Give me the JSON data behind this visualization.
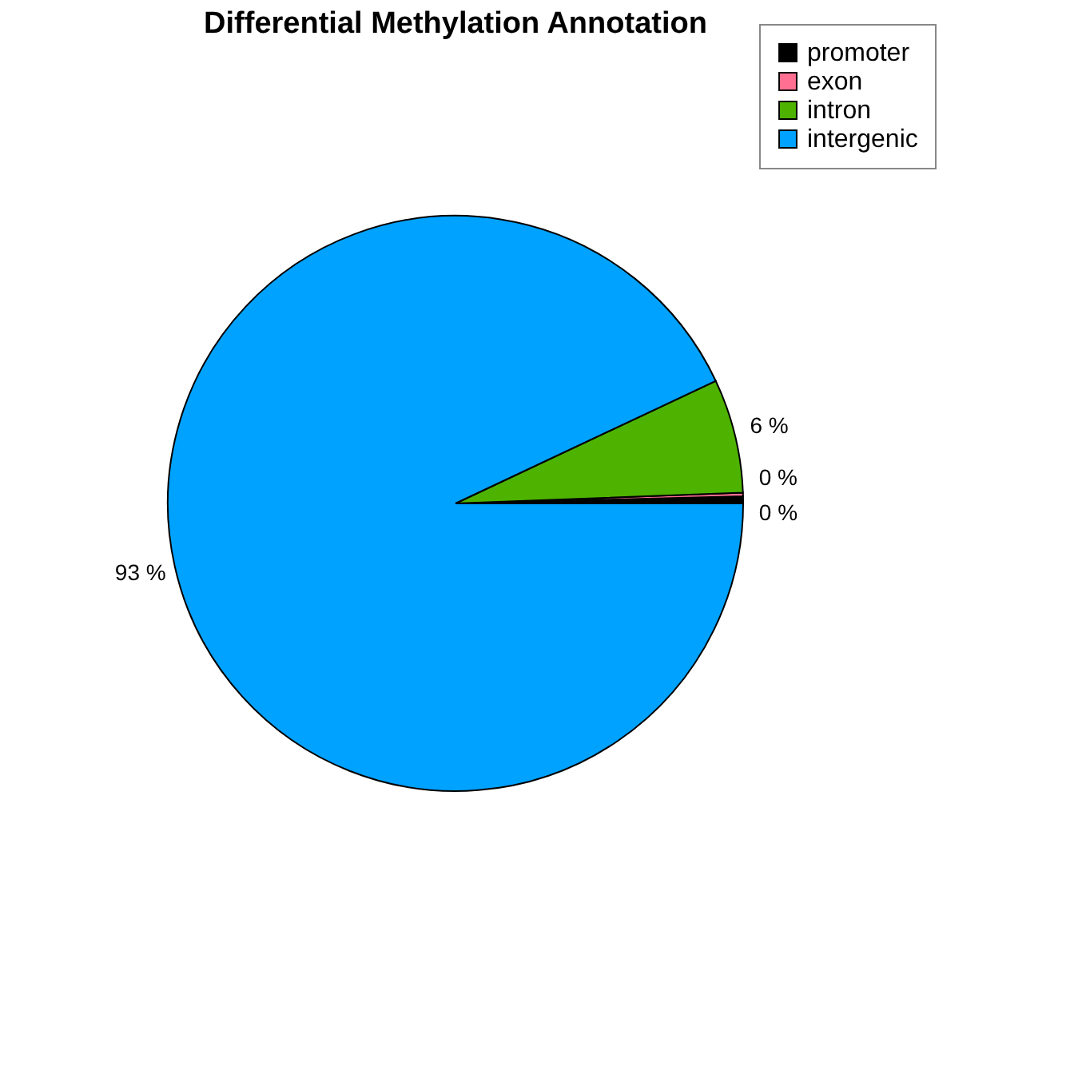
{
  "chart_data": {
    "type": "pie",
    "title": "Differential Methylation Annotation",
    "categories": [
      "promoter",
      "exon",
      "intron",
      "intergenic"
    ],
    "values": [
      0.4,
      0.2,
      6.4,
      93.0
    ],
    "colors": [
      "#000000",
      "#ff6f91",
      "#4eb300",
      "#00a2ff"
    ],
    "value_labels": [
      "0 %",
      "0 %",
      "6 %",
      "93 %"
    ],
    "legend": "top right"
  }
}
